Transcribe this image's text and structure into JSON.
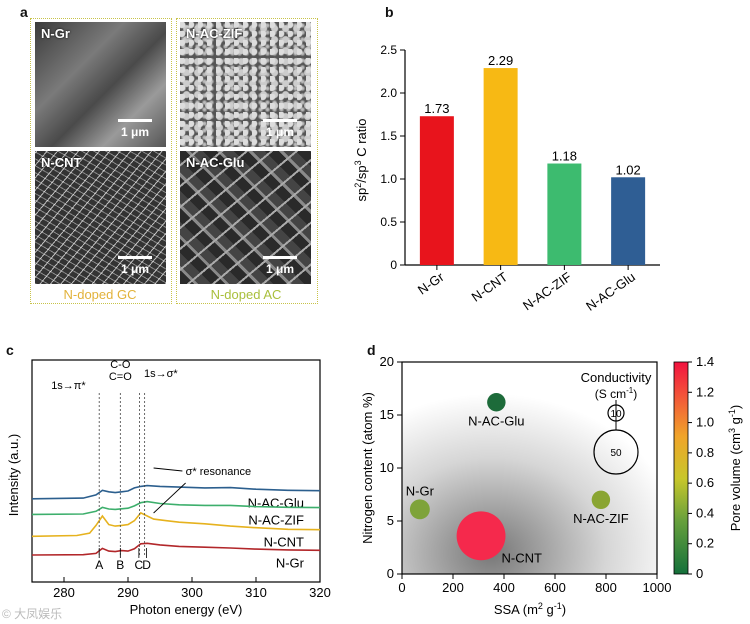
{
  "panels": {
    "a": {
      "letter": "a",
      "images": [
        {
          "label": "N-Gr",
          "scale": "1 μm"
        },
        {
          "label": "N-AC-ZIF",
          "scale": "1 μm"
        },
        {
          "label": "N-CNT",
          "scale": "1 μm"
        },
        {
          "label": "N-AC-Glu",
          "scale": "1 μm"
        }
      ],
      "group_left": "N-doped GC",
      "group_right": "N-doped AC",
      "group_left_color": "#e2b23a",
      "group_right_color": "#a9bf3b"
    },
    "b": {
      "letter": "b"
    },
    "c": {
      "letter": "c"
    },
    "d": {
      "letter": "d"
    }
  },
  "watermark": "© 大凤娱乐",
  "chart_data": [
    {
      "id": "b",
      "type": "bar",
      "categories": [
        "N-Gr",
        "N-CNT",
        "N-AC-ZIF",
        "N-AC-Glu"
      ],
      "values": [
        1.73,
        2.29,
        1.18,
        1.02
      ],
      "value_labels": [
        "1.73",
        "2.29",
        "1.18",
        "1.02"
      ],
      "colors": [
        "#e8141c",
        "#f7b914",
        "#3dbb6f",
        "#2f5e94"
      ],
      "ylabel_main": "sp",
      "ylabel_sup1": "2",
      "ylabel_mid": "/sp",
      "ylabel_sup2": "3",
      "ylabel_tail": " C ratio",
      "ylim": [
        0,
        2.5
      ],
      "yticks": [
        "0",
        "0.5",
        "1.0",
        "1.5",
        "2.0",
        "2.5"
      ]
    },
    {
      "id": "c",
      "type": "line",
      "xlabel": "Photon energy (eV)",
      "ylabel": "Intensity (a.u.)",
      "xlim": [
        275,
        320
      ],
      "xticks": [
        "280",
        "290",
        "300",
        "310",
        "320"
      ],
      "series": [
        {
          "name": "N-AC-Glu",
          "color": "#2c5f8e",
          "offset": 3.6,
          "points": [
            [
              275,
              0
            ],
            [
              283,
              0.05
            ],
            [
              285,
              0.25
            ],
            [
              286,
              0.55
            ],
            [
              287,
              0.45
            ],
            [
              288,
              0.4
            ],
            [
              289,
              0.45
            ],
            [
              290,
              0.5
            ],
            [
              291,
              0.7
            ],
            [
              292,
              0.8
            ],
            [
              293,
              0.85
            ],
            [
              295,
              0.8
            ],
            [
              298,
              0.75
            ],
            [
              302,
              0.7
            ],
            [
              306,
              0.72
            ],
            [
              310,
              0.62
            ],
            [
              315,
              0.55
            ],
            [
              320,
              0.52
            ]
          ]
        },
        {
          "name": "N-AC-ZIF",
          "color": "#3daf6c",
          "offset": 2.6,
          "points": [
            [
              275,
              0
            ],
            [
              283,
              0.03
            ],
            [
              285,
              0.2
            ],
            [
              286,
              0.45
            ],
            [
              287,
              0.35
            ],
            [
              288,
              0.32
            ],
            [
              289,
              0.36
            ],
            [
              290,
              0.4
            ],
            [
              291,
              0.55
            ],
            [
              292,
              0.75
            ],
            [
              293,
              0.82
            ],
            [
              295,
              0.7
            ],
            [
              298,
              0.62
            ],
            [
              302,
              0.58
            ],
            [
              306,
              0.58
            ],
            [
              310,
              0.5
            ],
            [
              315,
              0.46
            ],
            [
              320,
              0.44
            ]
          ]
        },
        {
          "name": "N-CNT",
          "color": "#e6b21e",
          "offset": 1.2,
          "points": [
            [
              275,
              0
            ],
            [
              282,
              0.05
            ],
            [
              284,
              0.2
            ],
            [
              285,
              0.7
            ],
            [
              286,
              1.3
            ],
            [
              287,
              0.75
            ],
            [
              288,
              0.65
            ],
            [
              289,
              0.7
            ],
            [
              290,
              0.75
            ],
            [
              291,
              1.0
            ],
            [
              292,
              1.5
            ],
            [
              293,
              1.3
            ],
            [
              294,
              1.1
            ],
            [
              296,
              1.0
            ],
            [
              298,
              0.9
            ],
            [
              302,
              0.8
            ],
            [
              306,
              0.65
            ],
            [
              310,
              0.55
            ],
            [
              315,
              0.45
            ],
            [
              320,
              0.42
            ]
          ]
        },
        {
          "name": "N-Gr",
          "color": "#b2272a",
          "offset": 0,
          "points": [
            [
              275,
              0
            ],
            [
              283,
              0.02
            ],
            [
              285,
              0.1
            ],
            [
              286,
              0.42
            ],
            [
              287,
              0.25
            ],
            [
              288,
              0.22
            ],
            [
              289,
              0.28
            ],
            [
              290,
              0.25
            ],
            [
              291,
              0.4
            ],
            [
              292,
              0.72
            ],
            [
              293,
              0.75
            ],
            [
              295,
              0.65
            ],
            [
              298,
              0.55
            ],
            [
              302,
              0.5
            ],
            [
              306,
              0.45
            ],
            [
              310,
              0.38
            ],
            [
              315,
              0.33
            ],
            [
              320,
              0.3
            ]
          ]
        }
      ],
      "annotations": {
        "pi_star": "1s→π*",
        "co": "C-O",
        "ceq": "C=O",
        "sigma_star": "1s→σ*",
        "resonance": "σ* resonance",
        "A": "A",
        "B": "B",
        "C": "C",
        "D": "D"
      },
      "marker_positions_ev": [
        285.5,
        288.8,
        291.8,
        292.6
      ]
    },
    {
      "id": "d",
      "type": "scatter",
      "xlabel": "SSA (m",
      "xlabel_sup": "2",
      "xlabel_mid": " g",
      "xlabel_sup2": "-1",
      "xlabel_tail": ")",
      "ylabel": "Nitrogen content (atom %)",
      "xlim": [
        0,
        1000
      ],
      "ylim": [
        0,
        20
      ],
      "xticks": [
        "0",
        "200",
        "400",
        "600",
        "800",
        "1000"
      ],
      "yticks": [
        "0",
        "5",
        "10",
        "15",
        "20"
      ],
      "points": [
        {
          "name": "N-Gr",
          "ssa": 70,
          "n": 6.1,
          "pore_volume": 0.4,
          "conductivity": 10,
          "color": "#7ea33a"
        },
        {
          "name": "N-CNT",
          "ssa": 310,
          "n": 3.6,
          "pore_volume": 1.4,
          "conductivity": 95,
          "color": "#f5294c"
        },
        {
          "name": "N-AC-Glu",
          "ssa": 370,
          "n": 16.2,
          "pore_volume": 0.05,
          "conductivity": 8,
          "color": "#1d6b3a"
        },
        {
          "name": "N-AC-ZIF",
          "ssa": 780,
          "n": 7.0,
          "pore_volume": 0.5,
          "conductivity": 8,
          "color": "#8aa532"
        }
      ],
      "size_legend_title": "Conductivity",
      "size_legend_unit": "(S cm",
      "size_legend_unit_sup": "-1",
      "size_legend_unit_tail": ")",
      "size_legend_values": [
        "10",
        "50"
      ],
      "colorbar_label": "Pore volume (cm",
      "colorbar_label_sup": "3",
      "colorbar_label_mid": " g",
      "colorbar_label_sup2": "-1",
      "colorbar_label_tail": ")",
      "colorbar_range": [
        0,
        1.4
      ],
      "colorbar_ticks": [
        "0",
        "0.2",
        "0.4",
        "0.6",
        "0.8",
        "1.0",
        "1.2",
        "1.4"
      ],
      "colorbar_colors": [
        "#14703b",
        "#67a03c",
        "#c8c72b",
        "#f0a42a",
        "#f3513a",
        "#f2123f"
      ]
    }
  ]
}
